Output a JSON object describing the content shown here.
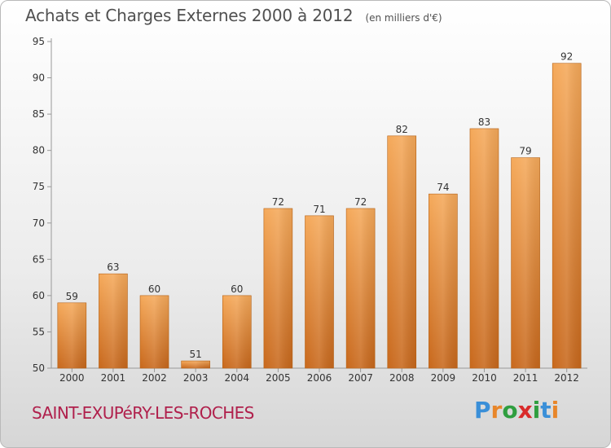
{
  "title": "Achats et Charges Externes 2000 à 2012",
  "subtitle": "(en milliers d'€)",
  "commune": "SAINT-EXUPéRY-LES-ROCHES",
  "brand": {
    "letters": [
      "P",
      "r",
      "o",
      "x",
      "i",
      "t",
      "i"
    ],
    "colors": [
      "#3a8fd8",
      "#e8862a",
      "#2f9e3f",
      "#d92b2b",
      "#2f9e3f",
      "#3a8fd8",
      "#e8862a"
    ]
  },
  "colors": {
    "bar_light": "#f5a95a",
    "bar_dark": "#c8681c",
    "axis": "#999999",
    "grid_tick": "#999999"
  },
  "chart_data": {
    "type": "bar",
    "categories": [
      "2000",
      "2001",
      "2002",
      "2003",
      "2004",
      "2005",
      "2006",
      "2007",
      "2008",
      "2009",
      "2010",
      "2011",
      "2012"
    ],
    "values": [
      59,
      63,
      60,
      51,
      60,
      72,
      71,
      72,
      82,
      74,
      83,
      79,
      92
    ],
    "data_labels": [
      "59",
      "63",
      "60",
      "51",
      "60",
      "72",
      "71",
      "72",
      "82",
      "74",
      "83",
      "79",
      "92"
    ],
    "ylim": [
      50,
      95
    ],
    "yticks": [
      50,
      55,
      60,
      65,
      70,
      75,
      80,
      85,
      90,
      95
    ],
    "xlabel": "",
    "ylabel": "",
    "grid": false,
    "legend": "none"
  }
}
